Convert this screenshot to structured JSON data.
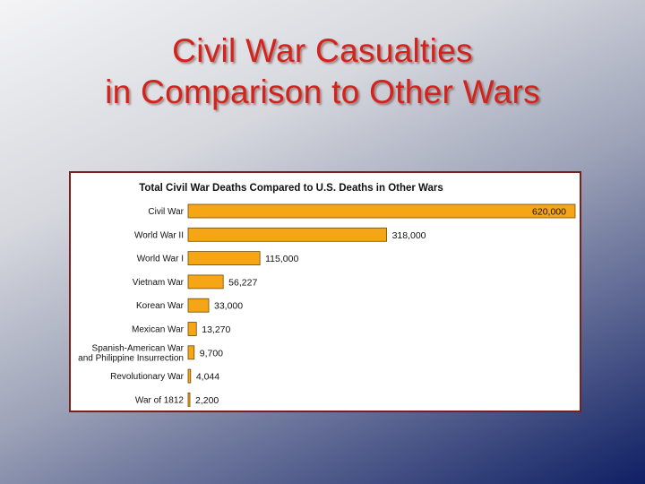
{
  "slide": {
    "title_line1": "Civil War Casualties",
    "title_line2": "in Comparison to Other Wars"
  },
  "colors": {
    "title": "#d4231c",
    "bar_fill": "#f6a614",
    "bar_stroke": "#6b4a10",
    "frame": "#7a1f1a"
  },
  "chart_data": {
    "type": "bar",
    "orientation": "horizontal",
    "title": "Total Civil War Deaths Compared to U.S. Deaths in Other Wars",
    "xlabel": "",
    "ylabel": "",
    "xlim": [
      0,
      620000
    ],
    "grid": false,
    "categories": [
      [
        "Civil War"
      ],
      [
        "World War II"
      ],
      [
        "World War I"
      ],
      [
        "Vietnam War"
      ],
      [
        "Korean War"
      ],
      [
        "Mexican War"
      ],
      [
        "Spanish-American War",
        "and Philippine Insurrection"
      ],
      [
        "Revolutionary War"
      ],
      [
        "War of 1812"
      ]
    ],
    "values": [
      620000,
      318000,
      115000,
      56227,
      33000,
      13270,
      9700,
      4044,
      2200
    ],
    "value_labels": [
      "620,000",
      "318,000",
      "115,000",
      "56,227",
      "33,000",
      "13,270",
      "9,700",
      "4,044",
      "2,200"
    ]
  }
}
